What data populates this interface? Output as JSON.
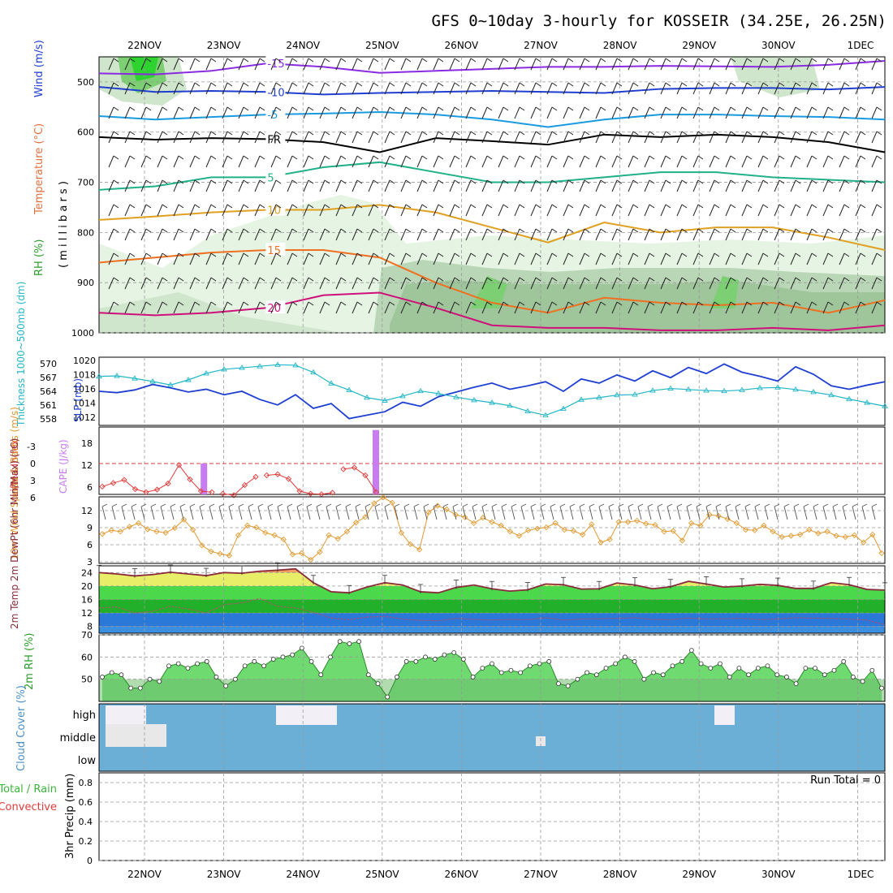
{
  "title": "GFS 0~10day 3-hourly for KOSSEIR (34.25E, 26.25N)",
  "date_labels": [
    "22NOV",
    "23NOV",
    "24NOV",
    "25NOV",
    "26NOV",
    "27NOV",
    "28NOV",
    "29NOV",
    "30NOV",
    "1DEC"
  ],
  "colors": {
    "rh_green": "#2fd32f",
    "temp_red": "#e0508a",
    "slp_blue": "#1f3fd0",
    "thick_cyan": "#22b6c6",
    "cape_purple": "#c77cf0",
    "li_red": "#e03b3b",
    "wind_orange": "#e09a30",
    "cloud_blue": "#6baed6",
    "precip_green": "#3ab53a"
  },
  "chart_data": [
    {
      "type": "area",
      "name_key": "upper_air",
      "ylabel_parts": [
        "RH (%)",
        "Temperature (°C)",
        "Wind (m/s)",
        "( m i l l i b a r s )"
      ],
      "yticks": [
        500,
        600,
        700,
        800,
        900,
        1000
      ],
      "ylim": [
        450,
        1000
      ],
      "temperature_contours": [
        {
          "label": "-15",
          "color": "#8a2be2",
          "p": [
            483,
            485,
            478,
            463,
            470,
            482,
            478,
            474,
            470,
            470,
            468,
            469,
            470,
            466,
            458
          ]
        },
        {
          "label": "-10",
          "color": "#1f3fd0",
          "p": [
            510,
            520,
            518,
            520,
            525,
            522,
            520,
            518,
            520,
            522,
            514,
            512,
            512,
            515,
            510
          ]
        },
        {
          "label": "-5",
          "color": "#1a9be0",
          "p": [
            568,
            575,
            570,
            565,
            563,
            560,
            565,
            575,
            590,
            575,
            565,
            565,
            568,
            570,
            575
          ]
        },
        {
          "label": "FR",
          "color": "#000000",
          "p": [
            610,
            615,
            612,
            614,
            620,
            640,
            612,
            618,
            625,
            605,
            610,
            605,
            610,
            620,
            640
          ]
        },
        {
          "label": "5",
          "color": "#20b08a",
          "p": [
            715,
            708,
            690,
            690,
            670,
            660,
            680,
            700,
            700,
            690,
            680,
            680,
            690,
            695,
            700
          ]
        },
        {
          "label": "10",
          "color": "#e0a020",
          "p": [
            775,
            768,
            760,
            755,
            755,
            745,
            760,
            790,
            820,
            780,
            800,
            790,
            790,
            810,
            835
          ]
        },
        {
          "label": "15",
          "color": "#f07020",
          "p": [
            860,
            850,
            840,
            835,
            835,
            850,
            900,
            940,
            960,
            930,
            940,
            945,
            940,
            960,
            935
          ]
        },
        {
          "label": "20",
          "color": "#d0107a",
          "p": [
            960,
            965,
            960,
            950,
            925,
            920,
            950,
            985,
            990,
            990,
            995,
            995,
            990,
            995,
            985
          ]
        }
      ]
    },
    {
      "type": "line",
      "name_key": "slp_thickness",
      "ylabel": "SLP (mb)",
      "ylabel2": "Thickness 1000~500mb (dm)",
      "yticks_left": [
        "1020",
        "1018",
        "1016",
        "1014",
        "1012"
      ],
      "yticks_left2": [
        "570",
        "567",
        "564",
        "561",
        "558"
      ],
      "ylim_slp": [
        1010,
        1020
      ],
      "slp": [
        1015.0,
        1014.8,
        1015.2,
        1016.0,
        1015.5,
        1014.9,
        1015.3,
        1014.5,
        1015.0,
        1013.8,
        1013.0,
        1014.5,
        1012.5,
        1013.2,
        1011.0,
        1011.5,
        1012.0,
        1013.4,
        1012.8,
        1014.2,
        1014.9,
        1015.6,
        1016.2,
        1015.3,
        1015.8,
        1016.4,
        1015.0,
        1016.8,
        1016.2,
        1017.4,
        1016.5,
        1018.0,
        1017.0,
        1018.5,
        1017.6,
        1019.0,
        1017.8,
        1017.2,
        1016.5,
        1018.6,
        1017.5,
        1015.8,
        1015.3,
        1015.9,
        1016.4
      ],
      "thickness": [
        567.2,
        567.3,
        566.8,
        566.2,
        565.5,
        566.5,
        567.8,
        568.6,
        568.9,
        569.2,
        569.5,
        569.4,
        568.0,
        565.8,
        564.5,
        563.0,
        562.4,
        563.3,
        564.3,
        563.8,
        563.1,
        562.5,
        562.0,
        561.4,
        560.3,
        559.5,
        560.8,
        562.6,
        563.0,
        563.5,
        563.6,
        564.4,
        564.8,
        564.6,
        564.4,
        564.3,
        564.5,
        564.9,
        565.0,
        564.6,
        564.1,
        563.5,
        562.7,
        562.0,
        561.3
      ]
    },
    {
      "type": "bar",
      "name_key": "cape_li",
      "ylabel": "CAPE (J/kg)",
      "ylabel2": "Lifted Index",
      "yticks": [
        "18",
        "12",
        "6"
      ],
      "yticks2": [
        "-3",
        "0",
        "3",
        "6"
      ],
      "cape_bars": [
        {
          "day": 0.75,
          "value": 12.5
        },
        {
          "day": 2.92,
          "value": 26
        }
      ],
      "lifted_index": [
        4.5,
        3.8,
        3.2,
        5.0,
        5.6,
        5.1,
        3.9,
        0.3,
        3.1,
        5.4,
        5.6,
        5.9,
        6.2,
        4.2,
        2.6,
        2.3,
        2.1,
        3.0,
        5.4,
        5.9,
        6.0,
        5.7,
        1.1,
        0.8,
        2.3,
        5.6
      ]
    },
    {
      "type": "line",
      "name_key": "wind10m",
      "ylabel": "10m Wind Speed & Barbs (m/s)",
      "yticks": [
        "12",
        "9",
        "6",
        "3"
      ],
      "ylim": [
        3,
        13
      ],
      "speed": [
        7.4,
        8.0,
        7.8,
        8.6,
        9.2,
        8.2,
        7.8,
        7.6,
        8.4,
        9.8,
        8.1,
        5.5,
        4.5,
        4.1,
        3.8,
        7.2,
        8.8,
        8.5,
        7.6,
        7.2,
        6.5,
        4.0,
        4.2,
        3.1,
        4.4,
        7.2,
        6.6,
        7.8,
        9.3,
        10.2,
        12.5,
        13.5,
        12.6,
        7.6,
        5.7,
        4.8,
        11.0,
        12.1,
        11.5,
        10.6,
        10.2,
        9.2,
        10.1,
        9.4,
        8.8,
        7.8,
        7.1,
        8.0,
        8.3,
        8.5,
        9.2,
        8.1,
        7.9,
        7.3,
        9.0,
        6.0,
        6.5,
        9.4,
        9.4,
        9.6,
        9.1,
        8.9,
        7.8,
        7.9,
        6.3,
        9.2,
        8.8,
        10.6,
        10.4,
        9.9,
        9.2,
        8.1,
        8.0,
        8.8,
        7.8,
        6.9,
        7.1,
        7.3,
        8.1,
        7.5,
        7.8,
        7.1,
        6.9,
        7.2,
        6.0,
        7.3,
        4.2
      ]
    },
    {
      "type": "area",
      "name_key": "temp2m",
      "ylabel": "2m Temp 2m DewPt (6hr Min/Max) (°C)",
      "yticks": [
        "24",
        "20",
        "16",
        "12",
        "8"
      ],
      "ylim": [
        6,
        26
      ],
      "temp": [
        24.0,
        23.6,
        23.0,
        23.4,
        24.1,
        23.6,
        23.1,
        24.0,
        23.8,
        24.4,
        24.7,
        25.1,
        21.0,
        18.3,
        18.0,
        19.7,
        21.0,
        20.3,
        18.3,
        18.0,
        19.6,
        20.3,
        19.2,
        18.5,
        18.9,
        20.6,
        20.4,
        19.1,
        19.2,
        20.9,
        20.3,
        19.2,
        19.8,
        21.4,
        20.6,
        19.7,
        20.0,
        20.5,
        20.2,
        19.3,
        19.3,
        21.0,
        20.4,
        19.0,
        18.8
      ],
      "dewpoint": [
        13.5,
        13.8,
        12.0,
        12.5,
        14.0,
        13.2,
        12.0,
        14.5,
        15.0,
        16.3,
        14.0,
        13.5,
        12.2,
        10.5,
        10.0,
        10.8,
        11.0,
        10.2,
        9.8,
        9.7,
        10.4,
        10.1,
        9.9,
        10.1,
        10.0,
        10.6,
        9.9,
        10.2,
        10.3,
        10.4,
        10.6,
        10.1,
        10.0,
        10.5,
        10.2,
        10.3,
        10.4,
        10.1,
        10.2,
        10.6,
        10.5,
        10.4,
        10.2,
        9.9,
        8.5
      ]
    },
    {
      "type": "area",
      "name_key": "rh2m",
      "ylabel": "2m RH (%)",
      "yticks": [
        "70",
        "60",
        "50"
      ],
      "ylim": [
        40,
        70
      ],
      "rh": [
        51,
        53,
        52,
        46,
        46,
        50,
        49,
        56,
        57,
        55,
        57,
        58,
        51,
        47,
        50,
        56,
        58,
        56,
        59,
        60,
        61,
        64,
        58,
        52,
        60,
        67,
        66,
        67,
        52,
        48,
        42,
        51,
        58,
        58,
        60,
        59,
        61,
        62,
        59,
        51,
        55,
        57,
        53,
        54,
        53,
        56,
        57,
        58,
        48,
        47,
        50,
        53,
        52,
        55,
        57,
        60,
        58,
        50,
        53,
        52,
        56,
        58,
        63,
        57,
        55,
        57,
        51,
        55,
        52,
        55,
        56,
        52,
        51,
        48,
        55,
        55,
        52,
        54,
        58,
        51,
        49,
        54,
        46
      ]
    },
    {
      "type": "area",
      "name_key": "cloud",
      "ylabel": "Cloud Cover (%)",
      "levels": [
        "high",
        "middle",
        "low"
      ]
    },
    {
      "type": "line",
      "name_key": "precip",
      "ylabel": "3hr Precip (mm)",
      "ylabel2": "Total / Rain",
      "ylabel3": "Convective",
      "yticks": [
        "0.8",
        "0.6",
        "0.4",
        "0.2",
        "0"
      ],
      "run_total": "Run Total = 0"
    }
  ]
}
